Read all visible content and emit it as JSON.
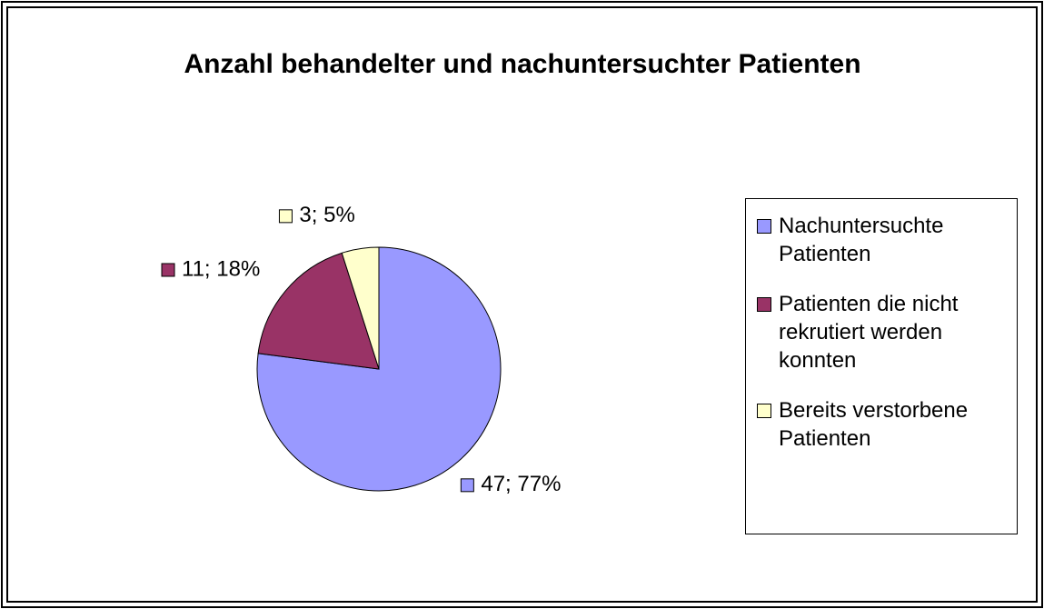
{
  "chart_data": {
    "type": "pie",
    "title": "Anzahl behandelter und nachuntersuchter Patienten",
    "categories": [
      "Nachuntersuchte Patienten",
      "Patienten die nicht rekrutiert werden konnten",
      "Bereits verstorbene Patienten"
    ],
    "values": [
      47,
      11,
      3
    ],
    "value_labels": [
      "47; 77%",
      "11; 18%",
      "3; 5%"
    ],
    "colors": [
      "#9999ff",
      "#993366",
      "#ffffcc"
    ],
    "legend": "right"
  }
}
